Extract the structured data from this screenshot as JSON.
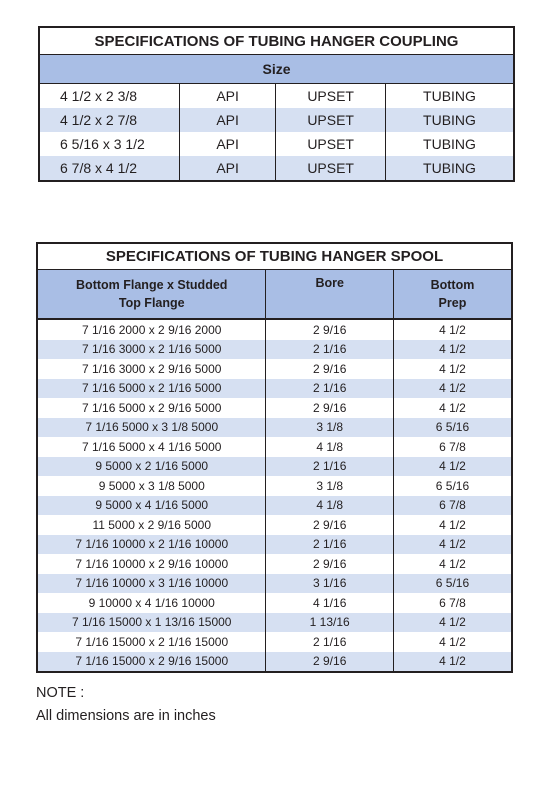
{
  "coupling": {
    "title": "SPECIFICATIONS OF TUBING HANGER COUPLING",
    "subheader": "Size",
    "rows": [
      [
        "4 1/2 x 2 3/8",
        "API",
        "UPSET",
        "TUBING"
      ],
      [
        "4 1/2 x 2 7/8",
        "API",
        "UPSET",
        "TUBING"
      ],
      [
        "6 5/16 x 3 1/2",
        "API",
        "UPSET",
        "TUBING"
      ],
      [
        "6 7/8 x 4 1/2",
        "API",
        "UPSET",
        "TUBING"
      ]
    ]
  },
  "spool": {
    "title": "SPECIFICATIONS OF TUBING HANGER SPOOL",
    "headers": {
      "col1_line1": "Bottom Flange x Studded",
      "col1_line2": "Top Flange",
      "col2": "Bore",
      "col3_line1": "Bottom",
      "col3_line2": "Prep"
    },
    "rows": [
      [
        "7 1/16 2000 x 2 9/16 2000",
        "2 9/16",
        "4 1/2"
      ],
      [
        "7 1/16 3000 x 2 1/16 5000",
        "2 1/16",
        "4 1/2"
      ],
      [
        "7 1/16 3000 x 2 9/16 5000",
        "2 9/16",
        "4 1/2"
      ],
      [
        "7 1/16 5000 x 2 1/16 5000",
        "2 1/16",
        "4 1/2"
      ],
      [
        "7 1/16 5000 x 2 9/16 5000",
        "2 9/16",
        "4 1/2"
      ],
      [
        "7 1/16 5000 x 3 1/8 5000",
        "3 1/8",
        "6 5/16"
      ],
      [
        "7 1/16 5000 x 4 1/16 5000",
        "4 1/8",
        "6 7/8"
      ],
      [
        "9 5000 x 2 1/16 5000",
        "2 1/16",
        "4 1/2"
      ],
      [
        "9 5000 x 3 1/8 5000",
        "3 1/8",
        "6 5/16"
      ],
      [
        "9 5000 x 4 1/16 5000",
        "4 1/8",
        "6 7/8"
      ],
      [
        "11 5000 x 2 9/16 5000",
        "2 9/16",
        "4 1/2"
      ],
      [
        "7 1/16 10000 x 2 1/16 10000",
        "2 1/16",
        "4 1/2"
      ],
      [
        "7 1/16 10000 x 2 9/16 10000",
        "2 9/16",
        "4 1/2"
      ],
      [
        "7 1/16 10000 x 3 1/16 10000",
        "3 1/16",
        "6 5/16"
      ],
      [
        "9 10000 x 4 1/16 10000",
        "4 1/16",
        "6 7/8"
      ],
      [
        "7 1/16 15000 x 1 13/16 15000",
        "1 13/16",
        "4 1/2"
      ],
      [
        "7 1/16 15000 x 2 1/16 15000",
        "2 1/16",
        "4 1/2"
      ],
      [
        "7 1/16 15000 x 2 9/16 15000",
        "2 9/16",
        "4 1/2"
      ]
    ]
  },
  "note": {
    "label": "NOTE :",
    "text": "All dimensions are in inches"
  }
}
